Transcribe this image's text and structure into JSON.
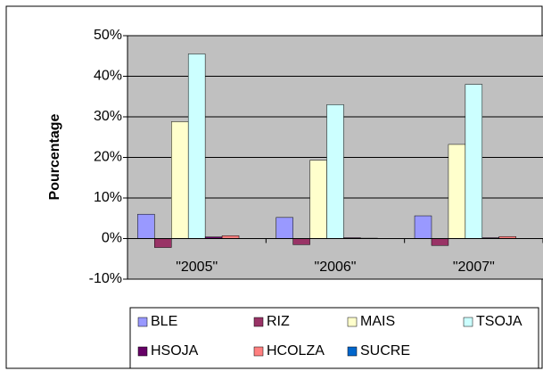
{
  "chart_data": {
    "type": "bar",
    "y_label": "Pourcentage",
    "categories": [
      "\"2005\"",
      "\"2006\"",
      "\"2007\""
    ],
    "series": [
      {
        "name": "BLE",
        "color": "#9999ff",
        "values": [
          6,
          5.2,
          5.6
        ]
      },
      {
        "name": "RIZ",
        "color": "#993366",
        "values": [
          -2.2,
          -1.5,
          -1.7
        ]
      },
      {
        "name": "MAIS",
        "color": "#ffffcc",
        "values": [
          28.8,
          19.3,
          23.2
        ]
      },
      {
        "name": "TSOJA",
        "color": "#ccffff",
        "values": [
          45.5,
          33,
          38
        ]
      },
      {
        "name": "HSOJA",
        "color": "#660066",
        "values": [
          0.4,
          0.2,
          0.2
        ]
      },
      {
        "name": "HCOLZA",
        "color": "#ff8080",
        "values": [
          0.7,
          0.1,
          0.5
        ]
      },
      {
        "name": "SUCRE",
        "color": "#0066cc",
        "values": [
          0,
          0,
          0
        ]
      }
    ],
    "ylim": [
      -10,
      50
    ],
    "yticks": [
      {
        "value": -10,
        "label": "-10%"
      },
      {
        "value": 0,
        "label": "0%"
      },
      {
        "value": 10,
        "label": "10%"
      },
      {
        "value": 20,
        "label": "20%"
      },
      {
        "value": 30,
        "label": "30%"
      },
      {
        "value": 40,
        "label": "40%"
      },
      {
        "value": 50,
        "label": "50%"
      }
    ],
    "grid": true,
    "legend": "bottom"
  }
}
